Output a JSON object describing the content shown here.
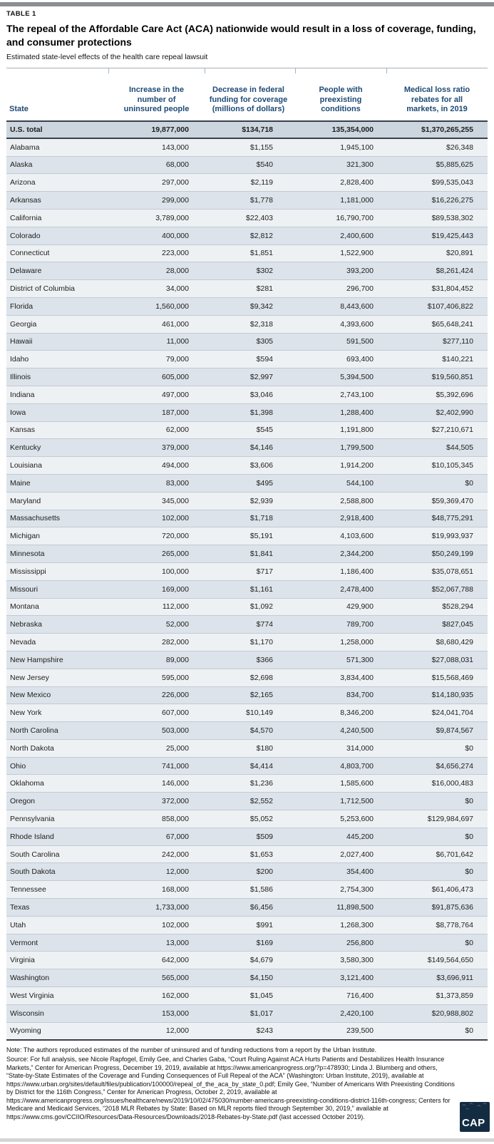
{
  "page": {
    "table_label": "TABLE 1",
    "title": "The repeal of the Affordable Care Act (ACA) nationwide would result in a loss of coverage, funding, and consumer protections",
    "subtitle": "Estimated state-level effects of the health care repeal lawsuit"
  },
  "chart_data": {
    "type": "table",
    "title": "The repeal of the Affordable Care Act (ACA) nationwide would result in a loss of coverage, funding, and consumer protections",
    "subtitle": "Estimated state-level effects of the health care repeal lawsuit",
    "columns": [
      "State",
      "Increase in the number of uninsured people",
      "Decrease in federal funding for coverage (millions of dollars)",
      "People with preexisting conditions",
      "Medical loss ratio rebates for all markets, in 2019"
    ],
    "total_row": [
      "U.S. total",
      "19,877,000",
      "$134,718",
      "135,354,000",
      "$1,370,265,255"
    ],
    "rows": [
      [
        "Alabama",
        "143,000",
        "$1,155",
        "1,945,100",
        "$26,348"
      ],
      [
        "Alaska",
        "68,000",
        "$540",
        "321,300",
        "$5,885,625"
      ],
      [
        "Arizona",
        "297,000",
        "$2,119",
        "2,828,400",
        "$99,535,043"
      ],
      [
        "Arkansas",
        "299,000",
        "$1,778",
        "1,181,000",
        "$16,226,275"
      ],
      [
        "California",
        "3,789,000",
        "$22,403",
        "16,790,700",
        "$89,538,302"
      ],
      [
        "Colorado",
        "400,000",
        "$2,812",
        "2,400,600",
        "$19,425,443"
      ],
      [
        "Connecticut",
        "223,000",
        "$1,851",
        "1,522,900",
        "$20,891"
      ],
      [
        "Delaware",
        "28,000",
        "$302",
        "393,200",
        "$8,261,424"
      ],
      [
        "District of Columbia",
        "34,000",
        "$281",
        "296,700",
        "$31,804,452"
      ],
      [
        "Florida",
        "1,560,000",
        "$9,342",
        "8,443,600",
        "$107,406,822"
      ],
      [
        "Georgia",
        "461,000",
        "$2,318",
        "4,393,600",
        "$65,648,241"
      ],
      [
        "Hawaii",
        "11,000",
        "$305",
        "591,500",
        "$277,110"
      ],
      [
        "Idaho",
        "79,000",
        "$594",
        "693,400",
        "$140,221"
      ],
      [
        "Illinois",
        "605,000",
        "$2,997",
        "5,394,500",
        "$19,560,851"
      ],
      [
        "Indiana",
        "497,000",
        "$3,046",
        "2,743,100",
        "$5,392,696"
      ],
      [
        "Iowa",
        "187,000",
        "$1,398",
        "1,288,400",
        "$2,402,990"
      ],
      [
        "Kansas",
        "62,000",
        "$545",
        "1,191,800",
        "$27,210,671"
      ],
      [
        "Kentucky",
        "379,000",
        "$4,146",
        "1,799,500",
        "$44,505"
      ],
      [
        "Louisiana",
        "494,000",
        "$3,606",
        "1,914,200",
        "$10,105,345"
      ],
      [
        "Maine",
        "83,000",
        "$495",
        "544,100",
        "$0"
      ],
      [
        "Maryland",
        "345,000",
        "$2,939",
        "2,588,800",
        "$59,369,470"
      ],
      [
        "Massachusetts",
        "102,000",
        "$1,718",
        "2,918,400",
        "$48,775,291"
      ],
      [
        "Michigan",
        "720,000",
        "$5,191",
        "4,103,600",
        "$19,993,937"
      ],
      [
        "Minnesota",
        "265,000",
        "$1,841",
        "2,344,200",
        "$50,249,199"
      ],
      [
        "Mississippi",
        "100,000",
        "$717",
        "1,186,400",
        "$35,078,651"
      ],
      [
        "Missouri",
        "169,000",
        "$1,161",
        "2,478,400",
        "$52,067,788"
      ],
      [
        "Montana",
        "112,000",
        "$1,092",
        "429,900",
        "$528,294"
      ],
      [
        "Nebraska",
        "52,000",
        "$774",
        "789,700",
        "$827,045"
      ],
      [
        "Nevada",
        "282,000",
        "$1,170",
        "1,258,000",
        "$8,680,429"
      ],
      [
        "New Hampshire",
        "89,000",
        "$366",
        "571,300",
        "$27,088,031"
      ],
      [
        "New Jersey",
        "595,000",
        "$2,698",
        "3,834,400",
        "$15,568,469"
      ],
      [
        "New Mexico",
        "226,000",
        "$2,165",
        "834,700",
        "$14,180,935"
      ],
      [
        "New York",
        "607,000",
        "$10,149",
        "8,346,200",
        "$24,041,704"
      ],
      [
        "North Carolina",
        "503,000",
        "$4,570",
        "4,240,500",
        "$9,874,567"
      ],
      [
        "North Dakota",
        "25,000",
        "$180",
        "314,000",
        "$0"
      ],
      [
        "Ohio",
        "741,000",
        "$4,414",
        "4,803,700",
        "$4,656,274"
      ],
      [
        "Oklahoma",
        "146,000",
        "$1,236",
        "1,585,600",
        "$16,000,483"
      ],
      [
        "Oregon",
        "372,000",
        "$2,552",
        "1,712,500",
        "$0"
      ],
      [
        "Pennsylvania",
        "858,000",
        "$5,052",
        "5,253,600",
        "$129,984,697"
      ],
      [
        "Rhode Island",
        "67,000",
        "$509",
        "445,200",
        "$0"
      ],
      [
        "South Carolina",
        "242,000",
        "$1,653",
        "2,027,400",
        "$6,701,642"
      ],
      [
        "South Dakota",
        "12,000",
        "$200",
        "354,400",
        "$0"
      ],
      [
        "Tennessee",
        "168,000",
        "$1,586",
        "2,754,300",
        "$61,406,473"
      ],
      [
        "Texas",
        "1,733,000",
        "$6,456",
        "11,898,500",
        "$91,875,636"
      ],
      [
        "Utah",
        "102,000",
        "$991",
        "1,268,300",
        "$8,778,764"
      ],
      [
        "Vermont",
        "13,000",
        "$169",
        "256,800",
        "$0"
      ],
      [
        "Virginia",
        "642,000",
        "$4,679",
        "3,580,300",
        "$149,564,650"
      ],
      [
        "Washington",
        "565,000",
        "$4,150",
        "3,121,400",
        "$3,696,911"
      ],
      [
        "West Virginia",
        "162,000",
        "$1,045",
        "716,400",
        "$1,373,859"
      ],
      [
        "Wisconsin",
        "153,000",
        "$1,017",
        "2,420,100",
        "$20,988,802"
      ],
      [
        "Wyoming",
        "12,000",
        "$243",
        "239,500",
        "$0"
      ]
    ]
  },
  "notes": {
    "note": "Note: The authors reproduced estimates of the number of uninsured and of funding reductions from a report by the Urban Institute.",
    "source": "Source: For full analysis, see Nicole Rapfogel, Emily Gee, and Charles Gaba, “Court Ruling Against ACA Hurts Patients and Destabilizes Health Insurance Markets,” Center for American Progress, December 19, 2019, available at https://www.americanprogress.org/?p=478930; Linda J. Blumberg and others, “State-by-State Estimates of the Coverage and Funding Consequences of Full Repeal of the ACA” (Washington: Urban Institute, 2019), available at https://www.urban.org/sites/default/files/publication/100000/repeal_of_the_aca_by_state_0.pdf; Emily Gee, “Number of Americans With Preexisting Conditions by District for the 116th Congress,” Center for American Progress, October 2, 2019, available at https://www.americanprogress.org/issues/healthcare/news/2019/10/02/475030/number-americans-preexisting-conditions-district-116th-congress; Centers for Medicare and Medicaid Services, “2018 MLR Rebates by State: Based on MLR reports filed through September 30, 2019,” available at https://www.cms.gov/CCIIO/Resources/Data-Resources/Downloads/2018-Rebates-by-State.pdf (last accessed October 2019)."
  },
  "logo": {
    "text": "CAP"
  },
  "colors": {
    "header_text": "#1e4a74",
    "total_row_bg": "#ccd6df",
    "row_light": "#eef1f4",
    "row_dark": "#dce3ea",
    "heavy_line": "#39414b",
    "logo_bg": "#142c42",
    "top_bar": "#8b8f92",
    "bottom_bar": "#d5d5d5"
  }
}
